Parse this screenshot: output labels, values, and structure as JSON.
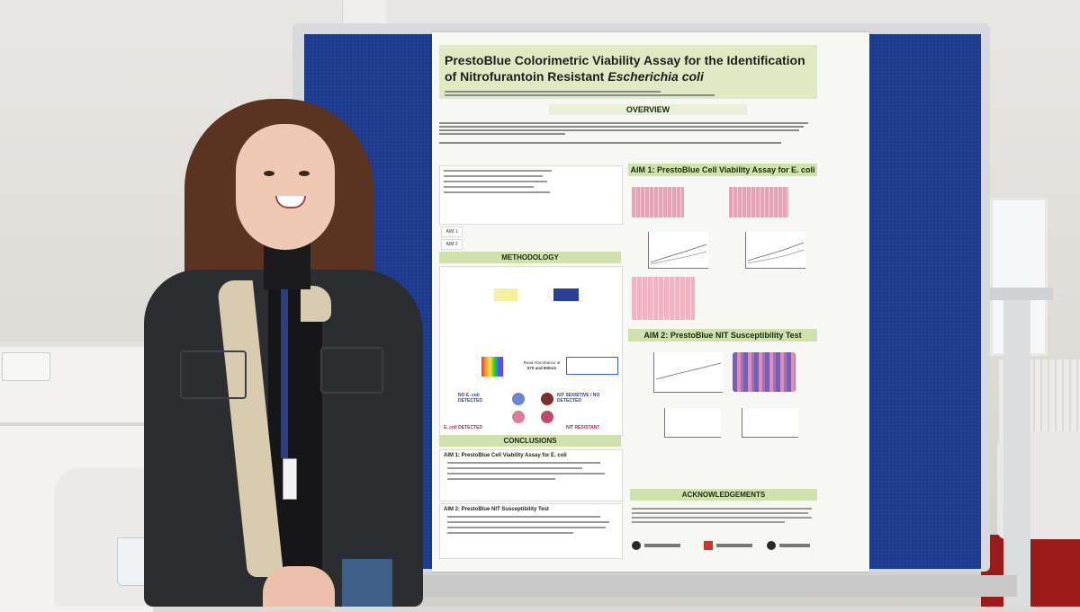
{
  "poster": {
    "title_line1": "PrestoBlue Colorimetric Viability Assay for the Identification",
    "title_line2": "of Nitrofurantoin Resistant",
    "title_italic": "Escherichia coli",
    "sections": {
      "overview": "OVERVIEW",
      "aim1": "AIM 1: PrestoBlue Cell Viability Assay for E. coli",
      "methodology": "METHODOLOGY",
      "aim2": "AIM 2: PrestoBlue NIT Susceptibility Test",
      "conclusions": "CONCLUSIONS",
      "acknowledgements": "ACKNOWLEDGEMENTS"
    },
    "aim_labels": [
      "AIM 1",
      "AIM 2"
    ],
    "methodology_labels": {
      "no_ecoli": "NO E. coli DETECTED",
      "ecoli": "E. coli DETECTED",
      "nit_sensitive": "NIT SENSITIVE / NO DETECTED",
      "nit_resistant": "NIT RESISTANT",
      "read_absorbance_line1": "Read Absorbance at",
      "read_absorbance_line2": "570 and 600nm"
    },
    "conclusions": {
      "aim1_heading": "AIM 1: PrestoBlue Cell Viability Assay for E. coli",
      "aim2_heading": "AIM 2: PrestoBlue NIT Susceptibility Test"
    }
  },
  "colors": {
    "board_blue": "#1d3a8c",
    "poster_band_green": "#cfe2ae",
    "heatmap_pink": "#e6a3b6",
    "heatmap_purple": "#7a5fb0"
  }
}
